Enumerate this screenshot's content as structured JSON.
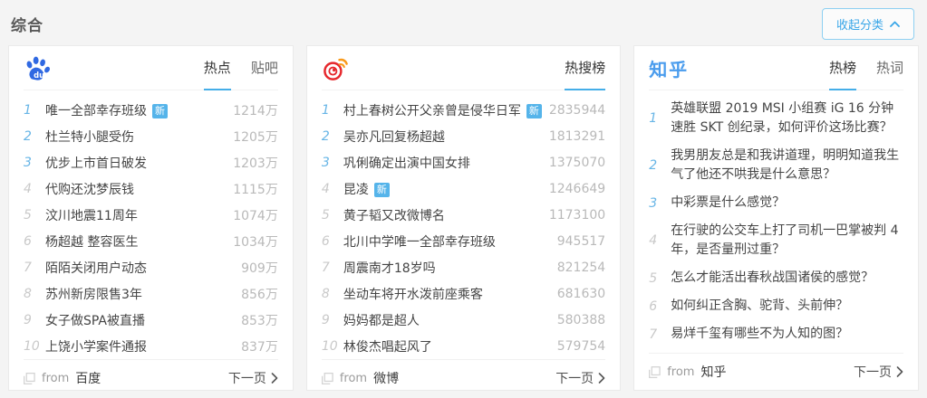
{
  "page": {
    "title": "综合",
    "collapse_label": "收起分类",
    "from_label": "from",
    "next_label": "下一页",
    "new_badge": "新",
    "colors": {
      "accent": "#45aee8",
      "rank_top": "#67b5e6",
      "badge": "#55b4ea",
      "baidu_blue": "#3069e2",
      "weibo_red": "#e6282d",
      "weibo_orange": "#f99a1c",
      "zhihu_blue": "#4a9ced"
    }
  },
  "panels": [
    {
      "logo": "baidu",
      "source": "百度",
      "tabs": [
        {
          "label": "热点",
          "active": true
        },
        {
          "label": "贴吧",
          "active": false
        }
      ],
      "items": [
        {
          "rank": 1,
          "title": "唯一全部幸存班级",
          "new": true,
          "value": "1214万"
        },
        {
          "rank": 2,
          "title": "杜兰特小腿受伤",
          "new": false,
          "value": "1205万"
        },
        {
          "rank": 3,
          "title": "优步上市首日破发",
          "new": false,
          "value": "1203万"
        },
        {
          "rank": 4,
          "title": "代购还沈梦辰钱",
          "new": false,
          "value": "1115万"
        },
        {
          "rank": 5,
          "title": "汶川地震11周年",
          "new": false,
          "value": "1074万"
        },
        {
          "rank": 6,
          "title": "杨超越 整容医生",
          "new": false,
          "value": "1034万"
        },
        {
          "rank": 7,
          "title": "陌陌关闭用户动态",
          "new": false,
          "value": "909万"
        },
        {
          "rank": 8,
          "title": "苏州新房限售3年",
          "new": false,
          "value": "856万"
        },
        {
          "rank": 9,
          "title": "女子做SPA被直播",
          "new": false,
          "value": "853万"
        },
        {
          "rank": 10,
          "title": "上饶小学案件通报",
          "new": false,
          "value": "837万"
        }
      ]
    },
    {
      "logo": "weibo",
      "source": "微博",
      "tabs": [
        {
          "label": "热搜榜",
          "active": true
        }
      ],
      "items": [
        {
          "rank": 1,
          "title": "村上春树公开父亲曾是侵华日军",
          "new": true,
          "value": "2835944"
        },
        {
          "rank": 2,
          "title": "吴亦凡回复杨超越",
          "new": false,
          "value": "1813291"
        },
        {
          "rank": 3,
          "title": "巩俐确定出演中国女排",
          "new": false,
          "value": "1375070"
        },
        {
          "rank": 4,
          "title": "昆凌",
          "new": true,
          "value": "1246649"
        },
        {
          "rank": 5,
          "title": "黄子韬又改微博名",
          "new": false,
          "value": "1173100"
        },
        {
          "rank": 6,
          "title": "北川中学唯一全部幸存班级",
          "new": false,
          "value": "945517"
        },
        {
          "rank": 7,
          "title": "周震南才18岁吗",
          "new": false,
          "value": "821254"
        },
        {
          "rank": 8,
          "title": "坐动车将开水泼前座乘客",
          "new": false,
          "value": "681630"
        },
        {
          "rank": 9,
          "title": "妈妈都是超人",
          "new": false,
          "value": "580388"
        },
        {
          "rank": 10,
          "title": "林俊杰唱起风了",
          "new": false,
          "value": "579754"
        }
      ]
    },
    {
      "logo": "zhihu",
      "source": "知乎",
      "tabs": [
        {
          "label": "热榜",
          "active": true
        },
        {
          "label": "热词",
          "active": false
        }
      ],
      "items": [
        {
          "rank": 1,
          "title": "英雄联盟 2019 MSI 小组赛 iG 16 分钟速胜 SKT 创纪录，如何评价这场比赛？"
        },
        {
          "rank": 2,
          "title": "我男朋友总是和我讲道理，明明知道我生气了他还不哄我是什么意思？"
        },
        {
          "rank": 3,
          "title": "中彩票是什么感觉？"
        },
        {
          "rank": 4,
          "title": "在行驶的公交车上打了司机一巴掌被判 4 年，是否量刑过重？"
        },
        {
          "rank": 5,
          "title": "怎么才能活出春秋战国诸侯的感觉？"
        },
        {
          "rank": 6,
          "title": "如何纠正含胸、驼背、头前伸？"
        },
        {
          "rank": 7,
          "title": "易烊千玺有哪些不为人知的图？"
        }
      ]
    }
  ]
}
